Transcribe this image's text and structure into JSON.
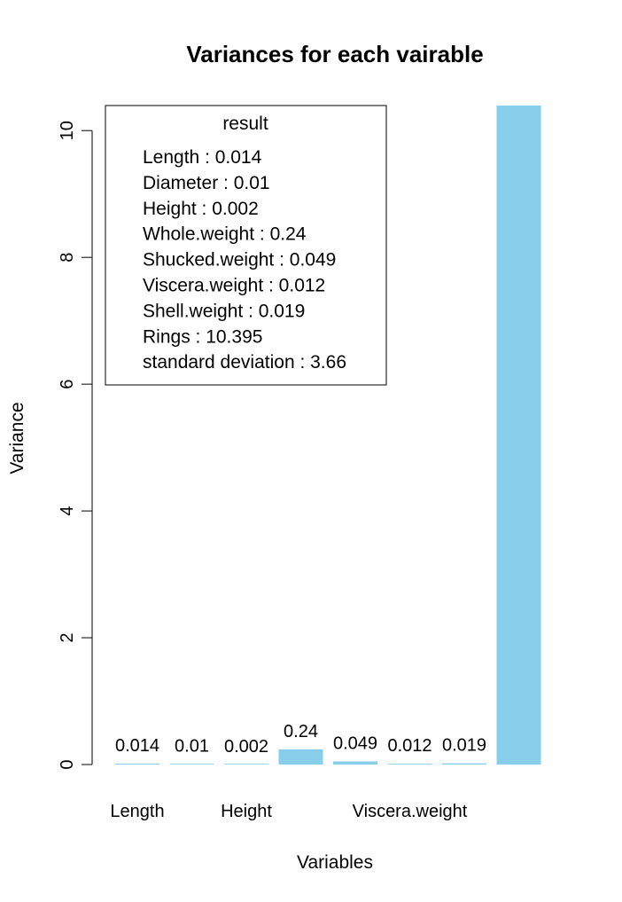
{
  "chart_data": {
    "type": "bar",
    "title": "Variances for each vairable",
    "xlabel": "Variables",
    "ylabel": "Variance",
    "ylim": [
      0,
      10.395
    ],
    "yticks": [
      "0",
      "2",
      "4",
      "6",
      "8",
      "10"
    ],
    "categories": [
      "Length",
      "Diameter",
      "Height",
      "Whole.weight",
      "Shucked.weight",
      "Viscera.weight",
      "Shell.weight",
      "Rings"
    ],
    "visible_xtick_labels": [
      "Length",
      "Height",
      "Viscera.weight"
    ],
    "values": [
      0.014,
      0.01,
      0.002,
      0.24,
      0.049,
      0.012,
      0.019,
      10.395
    ],
    "data_labels": [
      "0.014",
      "0.01",
      "0.002",
      "0.24",
      "0.049",
      "0.012",
      "0.019",
      ""
    ],
    "bar_color": "#87CEEB",
    "legend": {
      "title": "result",
      "position": "top-left",
      "entries": [
        "Length : 0.014",
        "Diameter : 0.01",
        "Height : 0.002",
        "Whole.weight : 0.24",
        "Shucked.weight : 0.049",
        "Viscera.weight : 0.012",
        "Shell.weight : 0.019",
        "Rings : 10.395",
        "standard deviation : 3.66"
      ]
    }
  }
}
